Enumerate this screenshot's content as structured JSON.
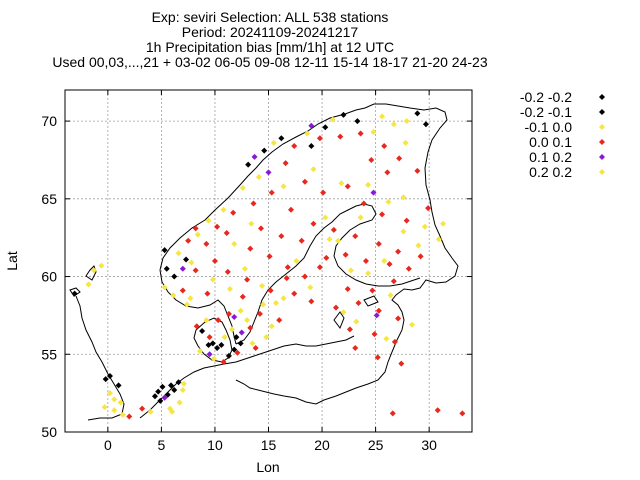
{
  "header": {
    "lines": [
      "Exp: seviri   Selection: ALL     538 stations",
      "Period: 20241109-20241217",
      "1h Precipitation bias [mm/1h] at  12 UTC",
      "Used 00,03,...,21 + 03-02 06-05 09-08 12-11 15-14 18-17 21-20 24-23"
    ]
  },
  "chart_data": {
    "type": "scatter",
    "xlabel": "Lon",
    "ylabel": "Lat",
    "xlim": [
      -4,
      34
    ],
    "ylim": [
      50,
      72
    ],
    "xticks": [
      0,
      5,
      10,
      15,
      20,
      25,
      30
    ],
    "yticks": [
      50,
      55,
      60,
      65,
      70
    ],
    "grid": true,
    "legend_placement": "right",
    "series": [
      {
        "name": "-0.2 -0.2",
        "color": "#000000",
        "points": [
          [
            20.3,
            69.6
          ],
          [
            22.0,
            70.4
          ],
          [
            23.3,
            70.0
          ],
          [
            28.9,
            70.5
          ],
          [
            19.0,
            68.4
          ],
          [
            4.7,
            52.6
          ],
          [
            5.1,
            52.9
          ],
          [
            4.4,
            52.3
          ],
          [
            6.6,
            53.2
          ],
          [
            5.9,
            53.0
          ],
          [
            -0.2,
            53.4
          ],
          [
            10.6,
            55.6
          ],
          [
            9.8,
            55.7
          ],
          [
            10.2,
            55.4
          ],
          [
            12.4,
            55.7
          ],
          [
            -3.1,
            58.9
          ]
        ]
      },
      {
        "name": "-0.2 -0.1",
        "color": "#000000",
        "points": [
          [
            16.2,
            68.9
          ],
          [
            14.6,
            68.1
          ],
          [
            13.1,
            67.2
          ],
          [
            29.7,
            69.8
          ],
          [
            5.5,
            60.5
          ],
          [
            6.2,
            60.0
          ],
          [
            7.3,
            61.1
          ],
          [
            5.3,
            61.7
          ],
          [
            4.9,
            52.0
          ],
          [
            5.6,
            52.4
          ],
          [
            6.2,
            52.7
          ],
          [
            0.2,
            53.6
          ],
          [
            1.0,
            53.0
          ],
          [
            11.3,
            54.9
          ],
          [
            9.4,
            55.6
          ],
          [
            8.8,
            56.5
          ],
          [
            11.8,
            55.3
          ],
          [
            12.0,
            56.1
          ]
        ]
      },
      {
        "name": "-0.1 0.0",
        "color": "#f5e642",
        "points": [
          [
            18.6,
            69.2
          ],
          [
            15.5,
            68.6
          ],
          [
            26.7,
            69.8
          ],
          [
            24.8,
            69.3
          ],
          [
            27.9,
            70.0
          ],
          [
            14.1,
            66.4
          ],
          [
            12.6,
            65.7
          ],
          [
            10.8,
            64.3
          ],
          [
            9.4,
            63.6
          ],
          [
            13.4,
            63.4
          ],
          [
            8.4,
            62.7
          ],
          [
            11.8,
            62.1
          ],
          [
            6.6,
            61.5
          ],
          [
            7.8,
            60.9
          ],
          [
            5.3,
            59.3
          ],
          [
            6.1,
            58.8
          ],
          [
            7.4,
            58.2
          ],
          [
            9.8,
            59.8
          ],
          [
            11.4,
            59.2
          ],
          [
            12.8,
            60.5
          ],
          [
            14.4,
            59.4
          ],
          [
            15.3,
            56.8
          ],
          [
            14.8,
            56.1
          ],
          [
            13.5,
            55.7
          ],
          [
            16.4,
            58.6
          ],
          [
            17.6,
            61.0
          ],
          [
            18.9,
            59.3
          ],
          [
            20.3,
            63.8
          ],
          [
            21.5,
            62.3
          ],
          [
            22.7,
            60.4
          ],
          [
            24.3,
            60.2
          ],
          [
            25.8,
            61.0
          ],
          [
            27.6,
            62.9
          ],
          [
            29.6,
            63.2
          ],
          [
            30.9,
            62.4
          ],
          [
            26.4,
            58.8
          ],
          [
            23.2,
            57.1
          ],
          [
            28.4,
            56.9
          ],
          [
            24.3,
            65.9
          ],
          [
            26.2,
            64.8
          ],
          [
            -1.3,
            60.4
          ],
          [
            -1.8,
            59.5
          ],
          [
            -0.6,
            60.7
          ],
          [
            1.2,
            51.9
          ],
          [
            0.2,
            52.5
          ],
          [
            0.6,
            51.4
          ],
          [
            -0.3,
            51.6
          ],
          [
            4.0,
            51.3
          ],
          [
            5.8,
            51.5
          ],
          [
            7.1,
            53.1
          ],
          [
            6.7,
            51.9
          ],
          [
            7.0,
            52.7
          ],
          [
            9.9,
            54.7
          ],
          [
            10.9,
            56.1
          ],
          [
            8.6,
            55.2
          ],
          [
            12.4,
            57.8
          ],
          [
            9.2,
            57.2
          ],
          [
            15.7,
            58.3
          ],
          [
            19.2,
            66.9
          ],
          [
            21.8,
            66.0
          ]
        ]
      },
      {
        "name": "0.0 0.1",
        "color": "#e8281e",
        "points": [
          [
            17.4,
            68.4
          ],
          [
            19.8,
            68.9
          ],
          [
            21.7,
            69.0
          ],
          [
            23.6,
            69.2
          ],
          [
            25.8,
            68.4
          ],
          [
            27.2,
            67.6
          ],
          [
            28.9,
            66.8
          ],
          [
            16.6,
            67.3
          ],
          [
            18.4,
            66.1
          ],
          [
            20.1,
            65.4
          ],
          [
            22.4,
            65.8
          ],
          [
            23.9,
            64.7
          ],
          [
            25.6,
            64.0
          ],
          [
            27.9,
            63.6
          ],
          [
            29.9,
            64.4
          ],
          [
            15.3,
            65.4
          ],
          [
            17.1,
            64.3
          ],
          [
            19.2,
            63.4
          ],
          [
            21.1,
            63.0
          ],
          [
            23.1,
            62.6
          ],
          [
            25.3,
            62.1
          ],
          [
            27.1,
            61.6
          ],
          [
            29.2,
            61.3
          ],
          [
            14.3,
            63.1
          ],
          [
            16.2,
            62.6
          ],
          [
            18.1,
            62.3
          ],
          [
            20.4,
            61.2
          ],
          [
            22.2,
            61.4
          ],
          [
            24.1,
            61.0
          ],
          [
            26.3,
            60.8
          ],
          [
            28.1,
            60.5
          ],
          [
            13.3,
            61.8
          ],
          [
            15.1,
            61.3
          ],
          [
            16.8,
            60.6
          ],
          [
            18.4,
            60.0
          ],
          [
            13.0,
            59.8
          ],
          [
            15.2,
            59.1
          ],
          [
            17.4,
            58.9
          ],
          [
            19.0,
            58.4
          ],
          [
            22.4,
            59.2
          ],
          [
            24.7,
            59.1
          ],
          [
            26.7,
            59.7
          ],
          [
            21.3,
            58.0
          ],
          [
            23.4,
            58.3
          ],
          [
            25.3,
            57.8
          ],
          [
            27.1,
            57.3
          ],
          [
            22.6,
            56.6
          ],
          [
            24.9,
            56.3
          ],
          [
            26.8,
            55.8
          ],
          [
            23.1,
            55.4
          ],
          [
            25.2,
            54.8
          ],
          [
            27.4,
            54.4
          ],
          [
            11.1,
            62.8
          ],
          [
            9.2,
            62.1
          ],
          [
            7.5,
            62.3
          ],
          [
            10.0,
            61.0
          ],
          [
            8.2,
            60.4
          ],
          [
            11.2,
            60.3
          ],
          [
            9.3,
            58.9
          ],
          [
            7.0,
            59.1
          ],
          [
            12.6,
            58.7
          ],
          [
            11.3,
            57.6
          ],
          [
            13.3,
            56.7
          ],
          [
            14.2,
            57.6
          ],
          [
            16.0,
            57.2
          ],
          [
            9.5,
            56.1
          ],
          [
            8.3,
            56.8
          ],
          [
            10.3,
            57.2
          ],
          [
            12.1,
            55.1
          ],
          [
            10.8,
            54.5
          ],
          [
            13.8,
            55.4
          ],
          [
            16.7,
            59.9
          ],
          [
            19.8,
            60.6
          ],
          [
            26.6,
            51.2
          ],
          [
            30.8,
            51.4
          ],
          [
            33.1,
            51.2
          ],
          [
            2.0,
            51.0
          ],
          [
            3.2,
            51.5
          ],
          [
            11.7,
            64.1
          ],
          [
            13.6,
            64.7
          ],
          [
            10.2,
            63.2
          ],
          [
            8.2,
            63.1
          ],
          [
            26.1,
            66.7
          ],
          [
            24.6,
            67.5
          ]
        ]
      },
      {
        "name": "0.1 0.2",
        "color": "#8a19d6",
        "points": [
          [
            19.0,
            69.7
          ],
          [
            13.7,
            67.7
          ],
          [
            15.0,
            66.7
          ],
          [
            24.8,
            65.4
          ],
          [
            7.0,
            60.5
          ],
          [
            9.5,
            55.0
          ],
          [
            12.5,
            56.4
          ],
          [
            11.8,
            57.4
          ],
          [
            25.1,
            57.5
          ],
          [
            5.3,
            52.2
          ]
        ]
      },
      {
        "name": "0.2 0.2",
        "color": "#f5e642",
        "points": [
          [
            21.0,
            70.1
          ],
          [
            25.6,
            70.3
          ],
          [
            27.8,
            68.6
          ],
          [
            16.4,
            65.8
          ],
          [
            20.7,
            62.4
          ],
          [
            23.6,
            63.8
          ],
          [
            29.0,
            62.0
          ],
          [
            22.0,
            57.7
          ],
          [
            6.0,
            51.3
          ],
          [
            0.6,
            52.1
          ],
          [
            7.7,
            58.6
          ],
          [
            14.5,
            58.2
          ],
          [
            13.0,
            57.2
          ],
          [
            26.0,
            56.0
          ],
          [
            1.4,
            51.1
          ],
          [
            11.6,
            56.6
          ],
          [
            31.3,
            63.4
          ],
          [
            27.6,
            65.1
          ]
        ]
      }
    ]
  }
}
